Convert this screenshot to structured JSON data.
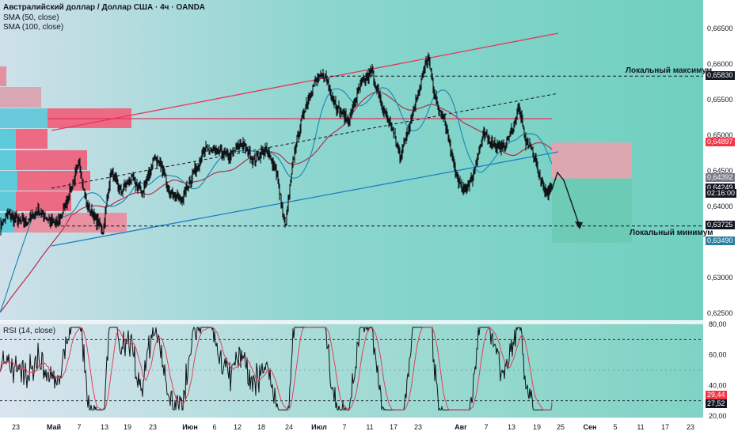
{
  "header": {
    "title": "Австралийский доллар / Доллар США · 4ч · OANDA",
    "sma50": "SMA (50, close)",
    "sma100": "SMA (100, close)"
  },
  "annotations": {
    "local_max": "Локальный максимум",
    "local_min": "Локальный минимум"
  },
  "price_scale": {
    "labels": [
      "0,66500",
      "0,66000",
      "0,65500",
      "0,65000",
      "0,64500",
      "0,64000",
      "0,63500",
      "0,63000",
      "0,62500"
    ],
    "badges": [
      {
        "value": "0,65830",
        "bg": "#131722"
      },
      {
        "value": "0,64897",
        "bg": "#f23645"
      },
      {
        "value": "0,64392",
        "bg": "#787b86"
      },
      {
        "value": "0,64249",
        "bg": "#131722"
      },
      {
        "value": "02:16:00",
        "bg": "#131722"
      },
      {
        "value": "0,63725",
        "bg": "#131722"
      },
      {
        "value": "0,63490",
        "bg": "#2a7fa0"
      }
    ]
  },
  "rsi": {
    "title": "RSI (14, close)",
    "labels": [
      "80,00",
      "60,00",
      "40,00",
      "20,00"
    ],
    "badges": [
      {
        "value": "29,44",
        "bg": "#f23645"
      },
      {
        "value": "27,52",
        "bg": "#131722"
      }
    ]
  },
  "time_axis": [
    "23",
    "Май",
    "7",
    "13",
    "19",
    "23",
    "Июн",
    "6",
    "12",
    "18",
    "24",
    "Июл",
    "7",
    "11",
    "17",
    "23",
    "Авг",
    "7",
    "13",
    "19",
    "25",
    "Сен",
    "5",
    "11",
    "17",
    "23"
  ],
  "chart_data": {
    "type": "line",
    "title": "Австралийский доллар / Доллар США · 4ч · OANDA",
    "series": [
      {
        "name": "SMA (50, close)"
      },
      {
        "name": "SMA (100, close)"
      }
    ],
    "x": [
      "23",
      "Май",
      "7",
      "13",
      "19",
      "23",
      "Июн",
      "6",
      "12",
      "18",
      "24",
      "Июл",
      "7",
      "11",
      "17",
      "23",
      "Авг",
      "7",
      "13",
      "19"
    ],
    "close": [
      0.636,
      0.6372,
      0.6402,
      0.638,
      0.642,
      0.6425,
      0.6445,
      0.6465,
      0.6475,
      0.6455,
      0.64,
      0.6585,
      0.657,
      0.659,
      0.653,
      0.6615,
      0.645,
      0.646,
      0.6545,
      0.6424
    ],
    "ylim": [
      0.6245,
      0.6655
    ],
    "yticks": [
      0.665,
      0.66,
      0.655,
      0.65,
      0.645,
      0.64,
      0.635,
      0.63,
      0.625
    ],
    "levels": {
      "local_max": 0.6583,
      "local_min": 0.63725,
      "last": 0.64249
    },
    "position": {
      "entry": 0.64392,
      "stop": 0.64897,
      "target": 0.6349
    },
    "rsi": {
      "ylim": [
        20,
        80
      ],
      "last": 27.52,
      "signal": 29.44,
      "upper": 70,
      "lower": 30
    }
  }
}
